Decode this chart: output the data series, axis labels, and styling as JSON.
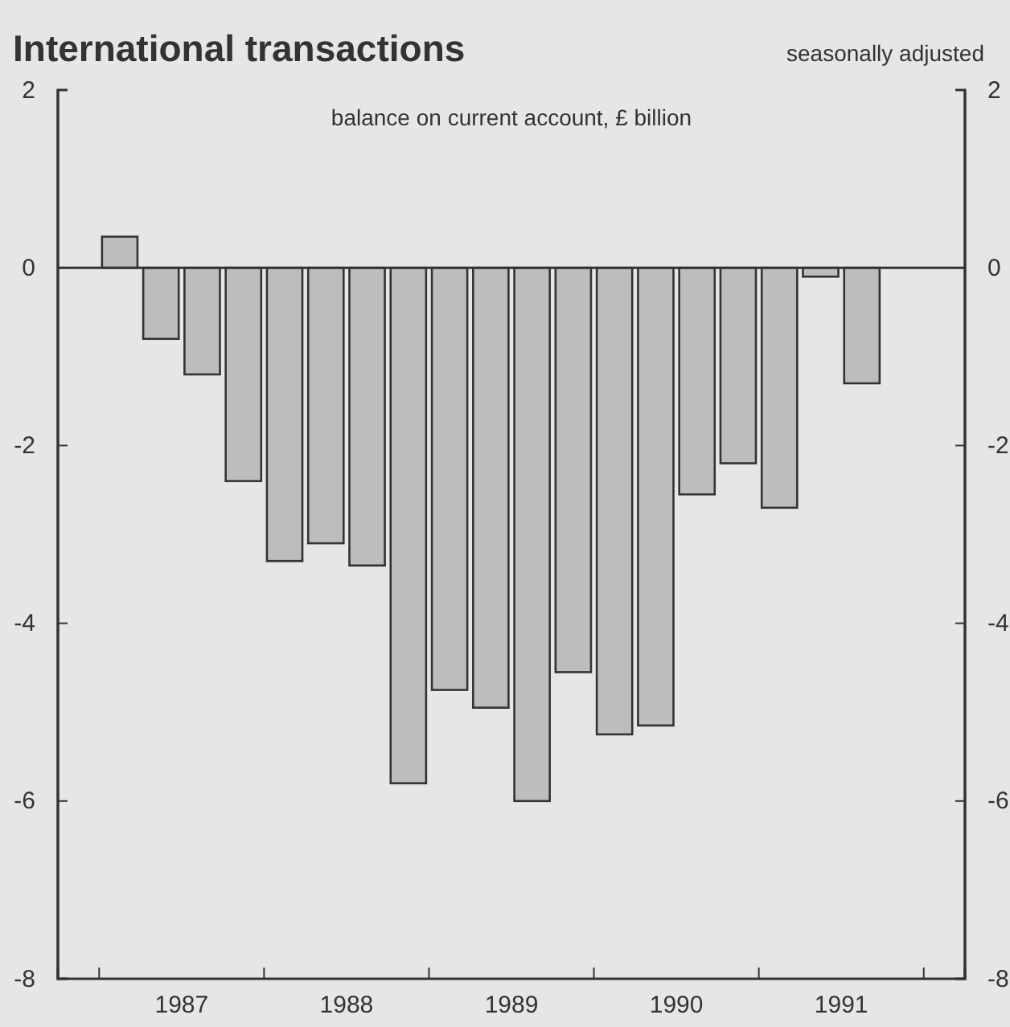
{
  "chart_data": {
    "type": "bar",
    "title": "International transactions",
    "subtitle": "seasonally adjusted",
    "annotations": [
      "balance on current account, £ billion"
    ],
    "x": [
      1987.125,
      1987.375,
      1987.625,
      1987.875,
      1988.125,
      1988.375,
      1988.625,
      1988.875,
      1989.125,
      1989.375,
      1989.625,
      1989.875,
      1990.125,
      1990.375,
      1990.625,
      1990.875,
      1991.125,
      1991.375,
      1991.625
    ],
    "values": [
      0.35,
      -0.8,
      -1.2,
      -2.4,
      -3.3,
      -3.1,
      -3.35,
      -5.8,
      -4.75,
      -4.95,
      -6.0,
      -4.55,
      -5.25,
      -5.15,
      -2.55,
      -2.2,
      -2.7,
      -0.1,
      -1.3
    ],
    "color": "#bdbdbd",
    "xlim": [
      1986.75,
      1992.25
    ],
    "xticks": [
      {
        "value": 1987,
        "label": null
      },
      {
        "value": 1987.5,
        "label": "1987"
      },
      {
        "value": 1988,
        "label": null
      },
      {
        "value": 1988.5,
        "label": "1988"
      },
      {
        "value": 1989,
        "label": null
      },
      {
        "value": 1989.5,
        "label": "1989"
      },
      {
        "value": 1990,
        "label": null
      },
      {
        "value": 1990.5,
        "label": "1990"
      },
      {
        "value": 1991,
        "label": null
      },
      {
        "value": 1991.5,
        "label": "1991"
      },
      {
        "value": 1992,
        "label": null
      }
    ],
    "ylim": [
      -8,
      2
    ],
    "yticks": [
      -8,
      -6,
      -4,
      -2,
      0,
      2
    ],
    "y2lim": [
      -8,
      2
    ],
    "y2ticks": [
      -8,
      -6,
      -4,
      -2,
      0,
      2
    ],
    "ref_lines": [
      {
        "axis": "y",
        "value": 0,
        "color": "#333333"
      }
    ],
    "grid": false
  }
}
